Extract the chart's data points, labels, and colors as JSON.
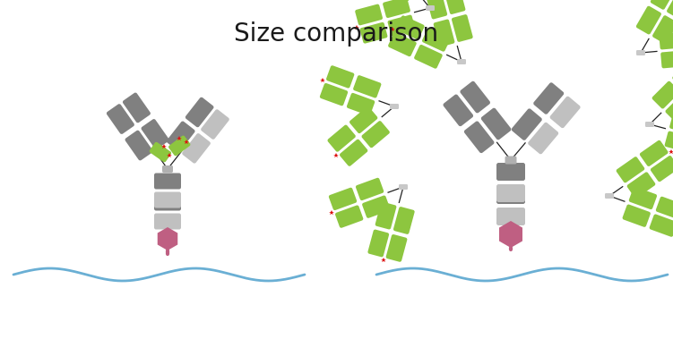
{
  "title": "Size comparison",
  "title_fontsize": 20,
  "background_color": "#ffffff",
  "gray_dark": "#808080",
  "gray_light": "#c0c0c0",
  "green": "#8dc63f",
  "purple": "#bf5f82",
  "red": "#dd1111",
  "blue_wave": "#6aafd4",
  "fig_width": 7.51,
  "fig_height": 3.79,
  "dpi": 100,
  "xlim": [
    0,
    751
  ],
  "ylim": [
    0,
    379
  ]
}
